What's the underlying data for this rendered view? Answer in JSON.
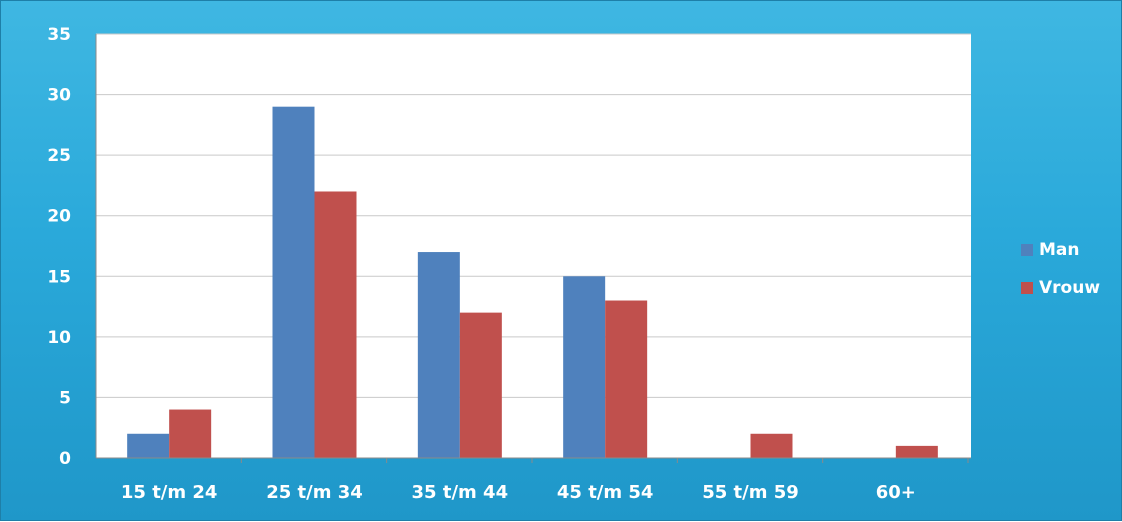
{
  "chart_data": {
    "type": "bar",
    "title": "",
    "xlabel": "",
    "ylabel": "",
    "categories": [
      "15 t/m 24",
      "25 t/m 34",
      "35 t/m 44",
      "45 t/m 54",
      "55 t/m 59",
      "60+"
    ],
    "series": [
      {
        "name": "Man",
        "color": "#4f81bd",
        "values": [
          2,
          29,
          17,
          15,
          0,
          0
        ]
      },
      {
        "name": "Vrouw",
        "color": "#c0504d",
        "values": [
          4,
          22,
          12,
          13,
          2,
          1
        ]
      }
    ],
    "ylim": [
      0,
      35
    ],
    "yticks": [
      0,
      5,
      10,
      15,
      20,
      25,
      30,
      35
    ],
    "grid": true,
    "legend_position": "right",
    "background_color": "#2aa9da",
    "plot_background_color": "#ffffff"
  }
}
